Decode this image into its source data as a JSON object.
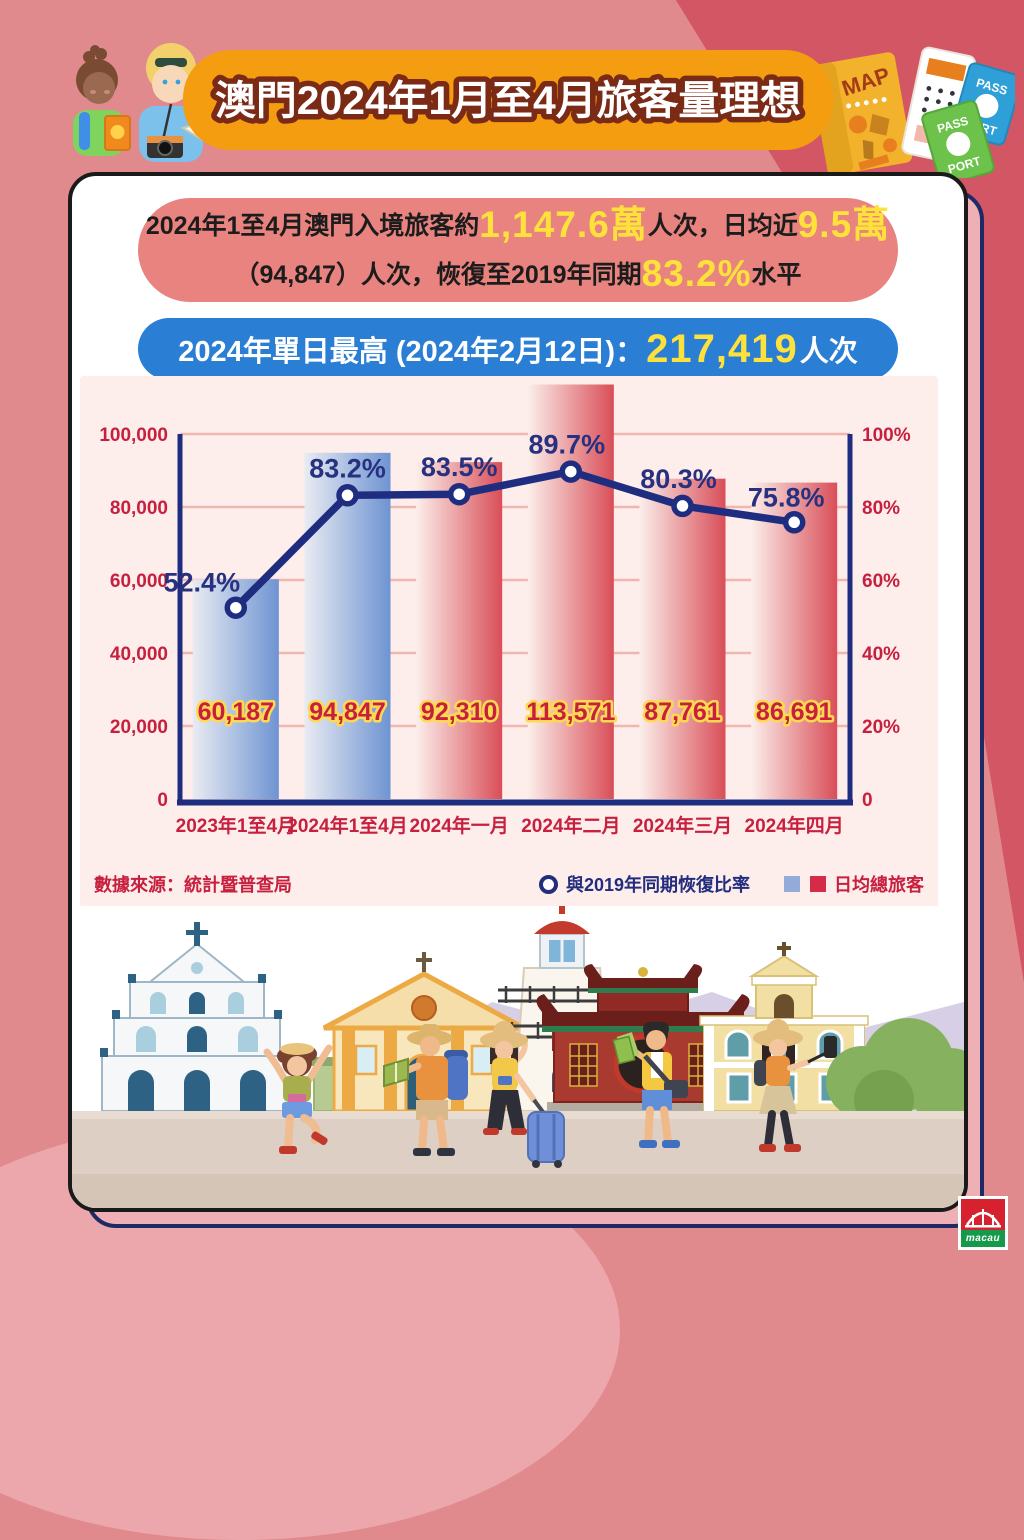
{
  "title_banner": "澳門2024年1月至4月旅客量理想",
  "summary_pill": {
    "l1_part1": "2024年1至4月澳門入境旅客約",
    "l1_highlight1": "1,147.6萬",
    "l1_part2": "人次，日均近",
    "l1_highlight2": "9.5萬",
    "l2_part1": "（94,847）人次，恢復至2019年同期",
    "l2_highlight": "83.2%",
    "l2_part2": "水平"
  },
  "peak_pill": {
    "label": "2024年單日最高 (2024年2月12日)：",
    "value": "217,419",
    "unit": "人次"
  },
  "chart_data": {
    "type": "bar+line",
    "categories": [
      "2023年1至4月",
      "2024年1至4月",
      "2024年一月",
      "2024年二月",
      "2024年三月",
      "2024年四月"
    ],
    "series": [
      {
        "name": "日均總旅客",
        "type": "bar",
        "values": [
          60187,
          94847,
          92310,
          113571,
          87761,
          86691
        ],
        "labels": [
          "60,187",
          "94,847",
          "92,310",
          "113,571",
          "87,761",
          "86,691"
        ],
        "colors": [
          "blue",
          "blue",
          "red",
          "red",
          "red",
          "red"
        ]
      },
      {
        "name": "與2019年同期恢復比率",
        "type": "line",
        "values": [
          52.4,
          83.2,
          83.5,
          89.7,
          80.3,
          75.8
        ],
        "labels": [
          "52.4%",
          "83.2%",
          "83.5%",
          "89.7%",
          "80.3%",
          "75.8%"
        ]
      }
    ],
    "left_axis": {
      "max": 100000,
      "ticks": [
        "100,000",
        "80,000",
        "60,000",
        "40,000",
        "20,000",
        "0"
      ]
    },
    "right_axis": {
      "max": 100,
      "ticks": [
        "100%",
        "80%",
        "60%",
        "40%",
        "20%",
        "0"
      ]
    },
    "grid": true,
    "legend_position": "bottom-right"
  },
  "legend": {
    "line_label": "與2019年同期恢復比率",
    "bar_label": "日均總旅客"
  },
  "source": "數據來源：統計暨普查局",
  "decor": {
    "map_label": "MAP",
    "passport_top": "PASS",
    "passport_bottom": "PORT",
    "logo_text": "macau"
  },
  "colors": {
    "banner_orange": "#f49d11",
    "pill_red": "#e8837f",
    "pill_blue": "#2a7ed4",
    "highlight_yellow": "#ffe13b",
    "panel_pink": "#fdedeb",
    "grid_pink": "#f0b6b0",
    "axis_crimson": "#c7203f",
    "line_navy": "#1f2d80",
    "pct_label_navy": "#27317f",
    "bar_blue": "#6e94d2",
    "bar_red": "#d94e58",
    "value_label_stroke": "#ffd94f"
  }
}
